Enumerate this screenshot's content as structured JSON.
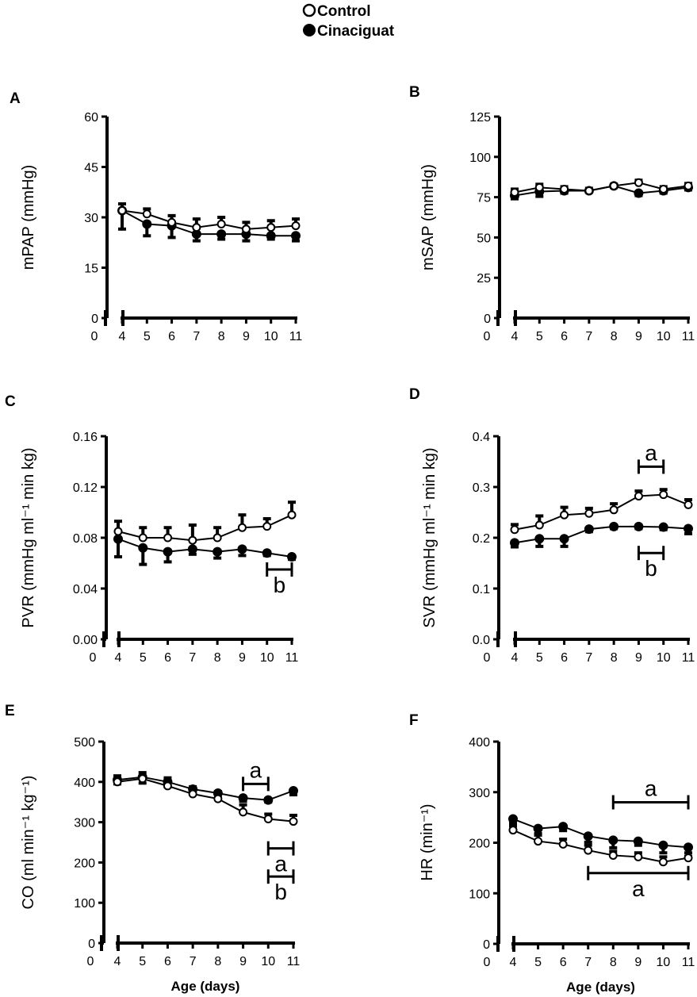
{
  "legend": [
    {
      "label": "Control",
      "marker": "open-circle"
    },
    {
      "label": "Cinaciguat",
      "marker": "filled-circle"
    }
  ],
  "colors": {
    "ink": "#000000",
    "background": "#ffffff"
  },
  "chart_data": [
    {
      "panel": "A",
      "type": "line",
      "ylabel": "mPAP (mmHg)",
      "xlabel": "",
      "yticks": [
        0,
        15,
        30,
        45,
        60
      ],
      "ytick_labels": [
        "0",
        "15",
        "30",
        "45",
        "60"
      ],
      "ylim": [
        0,
        60
      ],
      "x": [
        4,
        5,
        6,
        7,
        8,
        9,
        10,
        11
      ],
      "series": [
        {
          "name": "Control",
          "values": [
            32,
            31,
            28.5,
            27,
            28,
            26.5,
            27,
            27.5
          ],
          "err": [
            2,
            1.5,
            2,
            2.5,
            2,
            2,
            2,
            2
          ]
        },
        {
          "name": "Cinaciguat",
          "values": [
            32,
            28,
            27.5,
            25,
            25,
            25,
            24.5,
            24.5
          ],
          "err": [
            5.5,
            3.5,
            3.5,
            2,
            1.5,
            2,
            1,
            1.5
          ]
        }
      ],
      "annotations": []
    },
    {
      "panel": "B",
      "type": "line",
      "ylabel": "mSAP (mmHg)",
      "xlabel": "",
      "yticks": [
        0,
        25,
        50,
        75,
        100,
        125
      ],
      "ytick_labels": [
        "0",
        "25",
        "50",
        "75",
        "100",
        "125"
      ],
      "ylim": [
        0,
        125
      ],
      "x": [
        4,
        5,
        6,
        7,
        8,
        9,
        10,
        11
      ],
      "series": [
        {
          "name": "Control",
          "values": [
            78,
            81,
            80,
            79,
            82,
            84,
            80,
            82
          ],
          "err": [
            2,
            2,
            1.5,
            1.5,
            1,
            1.5,
            1.5,
            1.5
          ]
        },
        {
          "name": "Cinaciguat",
          "values": [
            76,
            78.5,
            79,
            79,
            82,
            77.5,
            79,
            81
          ],
          "err": [
            2,
            3,
            1.5,
            1,
            1,
            1.5,
            1.5,
            1.5
          ]
        }
      ],
      "annotations": []
    },
    {
      "panel": "C",
      "type": "line",
      "ylabel": "PVR (mmHg ml⁻¹ min kg)",
      "xlabel": "",
      "yticks": [
        0,
        0.04,
        0.08,
        0.12,
        0.16
      ],
      "ytick_labels": [
        "0.00",
        "0.04",
        "0.08",
        "0.12",
        "0.16"
      ],
      "ylim": [
        0,
        0.16
      ],
      "x": [
        4,
        5,
        6,
        7,
        8,
        9,
        10,
        11
      ],
      "series": [
        {
          "name": "Control",
          "values": [
            0.085,
            0.08,
            0.08,
            0.078,
            0.08,
            0.088,
            0.089,
            0.098
          ],
          "err": [
            0.008,
            0.008,
            0.008,
            0.012,
            0.008,
            0.01,
            0.006,
            0.01
          ]
        },
        {
          "name": "Cinaciguat",
          "values": [
            0.079,
            0.072,
            0.069,
            0.071,
            0.069,
            0.071,
            0.068,
            0.065
          ],
          "err": [
            0.014,
            0.013,
            0.008,
            0.004,
            0.005,
            0.005,
            0.002,
            0.002
          ]
        }
      ],
      "annotations": [
        {
          "text": "b",
          "x_start": 10,
          "x_end": 11,
          "y": 0.055,
          "label_side": "below"
        }
      ]
    },
    {
      "panel": "D",
      "type": "line",
      "ylabel": "SVR (mmHg ml⁻¹ min kg)",
      "xlabel": "",
      "yticks": [
        0,
        0.1,
        0.2,
        0.3,
        0.4
      ],
      "ytick_labels": [
        "0.0",
        "0.1",
        "0.2",
        "0.3",
        "0.4"
      ],
      "ylim": [
        0,
        0.4
      ],
      "x": [
        4,
        5,
        6,
        7,
        8,
        9,
        10,
        11
      ],
      "series": [
        {
          "name": "Control",
          "values": [
            0.216,
            0.225,
            0.245,
            0.248,
            0.255,
            0.282,
            0.285,
            0.265
          ],
          "err": [
            0.01,
            0.018,
            0.015,
            0.01,
            0.012,
            0.01,
            0.01,
            0.01
          ]
        },
        {
          "name": "Cinaciguat",
          "values": [
            0.19,
            0.198,
            0.198,
            0.217,
            0.222,
            0.222,
            0.221,
            0.218
          ],
          "err": [
            0.008,
            0.015,
            0.015,
            0.005,
            0.004,
            0.004,
            0.005,
            0.01
          ]
        }
      ],
      "annotations": [
        {
          "text": "a",
          "x_start": 9,
          "x_end": 10,
          "y": 0.34,
          "label_side": "above"
        },
        {
          "text": "b",
          "x_start": 9,
          "x_end": 10,
          "y": 0.17,
          "label_side": "below"
        }
      ]
    },
    {
      "panel": "E",
      "type": "line",
      "ylabel": "CO (ml min⁻¹ kg⁻¹)",
      "xlabel": "Age (days)",
      "yticks": [
        0,
        100,
        200,
        300,
        400,
        500
      ],
      "ytick_labels": [
        "0",
        "100",
        "200",
        "300",
        "400",
        "500"
      ],
      "ylim": [
        0,
        500
      ],
      "x": [
        4,
        5,
        6,
        7,
        8,
        9,
        10,
        11
      ],
      "series": [
        {
          "name": "Control",
          "values": [
            400,
            408,
            390,
            370,
            358,
            325,
            308,
            302
          ],
          "err": [
            15,
            15,
            20,
            18,
            18,
            18,
            12,
            15
          ]
        },
        {
          "name": "Cinaciguat",
          "values": [
            405,
            412,
            400,
            382,
            372,
            360,
            355,
            378
          ],
          "err": [
            10,
            15,
            12,
            10,
            10,
            8,
            5,
            10
          ]
        }
      ],
      "annotations": [
        {
          "text": "a",
          "x_start": 9,
          "x_end": 10,
          "y": 395,
          "label_side": "above"
        },
        {
          "text": "a",
          "x_start": 10,
          "x_end": 11,
          "y": 235,
          "label_side": "below"
        },
        {
          "text": "b",
          "x_start": 10,
          "x_end": 11,
          "y": 165,
          "label_side": "below"
        }
      ]
    },
    {
      "panel": "F",
      "type": "line",
      "ylabel": "HR (min⁻¹)",
      "xlabel": "Age (days)",
      "yticks": [
        0,
        100,
        200,
        300,
        400
      ],
      "ytick_labels": [
        "0",
        "100",
        "200",
        "300",
        "400"
      ],
      "ylim": [
        0,
        400
      ],
      "x": [
        4,
        5,
        6,
        7,
        8,
        9,
        10,
        11
      ],
      "series": [
        {
          "name": "Control",
          "values": [
            225,
            203,
            197,
            185,
            175,
            172,
            162,
            170
          ],
          "err": [
            8,
            12,
            10,
            10,
            8,
            8,
            10,
            10
          ]
        },
        {
          "name": "Cinaciguat",
          "values": [
            247,
            228,
            232,
            213,
            205,
            203,
            195,
            191
          ],
          "err": [
            8,
            10,
            8,
            12,
            15,
            8,
            15,
            18
          ]
        }
      ],
      "annotations": [
        {
          "text": "a",
          "x_start": 8,
          "x_end": 11,
          "y": 280,
          "label_side": "above"
        },
        {
          "text": "a",
          "x_start": 7,
          "x_end": 11,
          "y": 140,
          "label_side": "below"
        }
      ]
    }
  ]
}
